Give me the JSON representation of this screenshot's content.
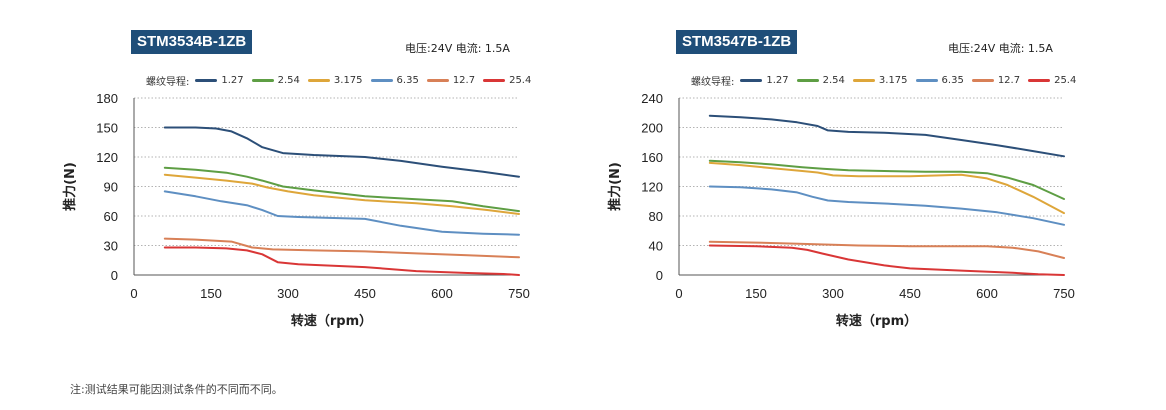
{
  "chart_data": [
    {
      "type": "line",
      "title": "STM3534B-1ZB",
      "spec_text": "电压:24V  电流: 1.5A",
      "legend_title": "螺纹导程:",
      "xlabel": "转速（rpm）",
      "ylabel": "推力(N)",
      "xlim": [
        0,
        750
      ],
      "ylim": [
        0,
        180
      ],
      "xticks": [
        0,
        150,
        300,
        450,
        600,
        750
      ],
      "yticks": [
        0,
        30,
        60,
        90,
        120,
        150,
        180
      ],
      "grid": "horizontal dotted",
      "legend_position": "top",
      "series": [
        {
          "name": "1.27",
          "color": "#2c4f78",
          "x": [
            60,
            120,
            160,
            190,
            220,
            250,
            290,
            350,
            450,
            520,
            600,
            680,
            750
          ],
          "y": [
            150,
            150,
            149,
            146,
            139,
            130,
            124,
            122,
            120,
            116,
            110,
            105,
            100
          ]
        },
        {
          "name": "2.54",
          "color": "#5e9e44",
          "x": [
            60,
            120,
            180,
            220,
            250,
            290,
            350,
            450,
            550,
            620,
            680,
            750
          ],
          "y": [
            109,
            107,
            104,
            100,
            96,
            90,
            86,
            80,
            77,
            75,
            70,
            65
          ]
        },
        {
          "name": "3.175",
          "color": "#dea63a",
          "x": [
            60,
            120,
            180,
            230,
            260,
            300,
            350,
            450,
            550,
            620,
            690,
            750
          ],
          "y": [
            102,
            99,
            96,
            93,
            89,
            85,
            81,
            76,
            73,
            70,
            66,
            62
          ]
        },
        {
          "name": "6.35",
          "color": "#5e8fc2",
          "x": [
            60,
            120,
            170,
            220,
            250,
            280,
            320,
            450,
            520,
            600,
            680,
            750
          ],
          "y": [
            85,
            80,
            75,
            71,
            66,
            60,
            59,
            57,
            50,
            44,
            42,
            41
          ]
        },
        {
          "name": "12.7",
          "color": "#d88057",
          "x": [
            60,
            120,
            190,
            230,
            270,
            350,
            450,
            550,
            650,
            750
          ],
          "y": [
            37,
            36,
            34,
            28,
            26,
            25,
            24,
            22,
            20,
            18
          ]
        },
        {
          "name": "25.4",
          "color": "#d93636",
          "x": [
            60,
            120,
            180,
            220,
            250,
            280,
            320,
            450,
            550,
            650,
            720,
            750
          ],
          "y": [
            28,
            28,
            27,
            25,
            21,
            13,
            11,
            8,
            4,
            2,
            1,
            0
          ]
        }
      ]
    },
    {
      "type": "line",
      "title": "STM3547B-1ZB",
      "spec_text": "电压:24V  电流: 1.5A",
      "legend_title": "螺纹导程:",
      "xlabel": "转速（rpm）",
      "ylabel": "推力(N)",
      "xlim": [
        0,
        750
      ],
      "ylim": [
        0,
        240
      ],
      "xticks": [
        0,
        150,
        300,
        450,
        600,
        750
      ],
      "yticks": [
        0,
        40,
        80,
        120,
        160,
        200,
        240
      ],
      "grid": "horizontal dotted",
      "legend_position": "top",
      "series": [
        {
          "name": "1.27",
          "color": "#2c4f78",
          "x": [
            60,
            120,
            180,
            230,
            270,
            290,
            330,
            400,
            480,
            550,
            620,
            690,
            750
          ],
          "y": [
            216,
            214,
            211,
            207,
            202,
            196,
            194,
            193,
            190,
            183,
            176,
            168,
            161
          ]
        },
        {
          "name": "2.54",
          "color": "#5e9e44",
          "x": [
            60,
            120,
            180,
            240,
            280,
            330,
            400,
            480,
            550,
            600,
            640,
            690,
            750
          ],
          "y": [
            155,
            153,
            150,
            146,
            144,
            142,
            141,
            140,
            140,
            138,
            132,
            122,
            103
          ]
        },
        {
          "name": "3.175",
          "color": "#dea63a",
          "x": [
            60,
            120,
            180,
            240,
            270,
            300,
            350,
            450,
            550,
            600,
            640,
            690,
            750
          ],
          "y": [
            152,
            149,
            145,
            141,
            139,
            135,
            134,
            134,
            136,
            131,
            122,
            106,
            84
          ]
        },
        {
          "name": "6.35",
          "color": "#5e8fc2",
          "x": [
            60,
            120,
            180,
            230,
            260,
            290,
            330,
            400,
            480,
            550,
            620,
            690,
            750
          ],
          "y": [
            120,
            119,
            116,
            112,
            106,
            101,
            99,
            97,
            94,
            90,
            85,
            77,
            68
          ]
        },
        {
          "name": "12.7",
          "color": "#d88057",
          "x": [
            60,
            150,
            250,
            350,
            450,
            550,
            600,
            650,
            700,
            750
          ],
          "y": [
            45,
            44,
            42,
            40,
            39,
            39,
            39,
            37,
            32,
            23
          ]
        },
        {
          "name": "25.4",
          "color": "#d93636",
          "x": [
            60,
            150,
            220,
            250,
            280,
            330,
            400,
            450,
            550,
            650,
            700,
            750
          ],
          "y": [
            40,
            39,
            37,
            34,
            29,
            21,
            13,
            9,
            6,
            3,
            1,
            0
          ]
        }
      ]
    }
  ],
  "footnote": "注:测试结果可能因测试条件的不同而不同。"
}
